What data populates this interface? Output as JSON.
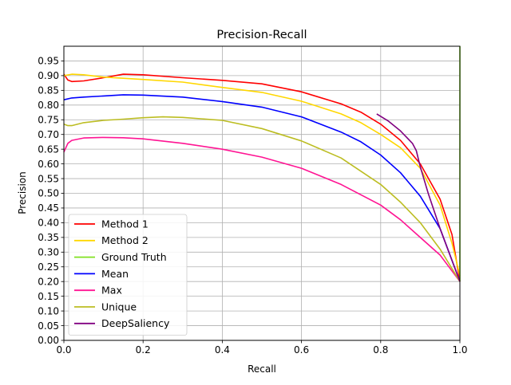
{
  "chart_data": {
    "type": "line",
    "title": "Precision-Recall",
    "xlabel": "Recall",
    "ylabel": "Precision",
    "xlim": [
      0,
      1
    ],
    "ylim": [
      0,
      1
    ],
    "grid": true,
    "legend_placement": "lower-left",
    "x_ticks": [
      "0.0",
      "0.2",
      "0.4",
      "0.6",
      "0.8",
      "1.0"
    ],
    "y_ticks": [
      "0.00",
      "0.05",
      "0.10",
      "0.15",
      "0.20",
      "0.25",
      "0.30",
      "0.35",
      "0.40",
      "0.45",
      "0.50",
      "0.55",
      "0.60",
      "0.65",
      "0.70",
      "0.75",
      "0.80",
      "0.85",
      "0.90",
      "0.95"
    ],
    "series": [
      {
        "name": "Method 1",
        "color": "#ff0000",
        "x": [
          0.0,
          0.01,
          0.02,
          0.05,
          0.1,
          0.15,
          0.2,
          0.3,
          0.4,
          0.5,
          0.6,
          0.7,
          0.75,
          0.8,
          0.85,
          0.9,
          0.95,
          0.98,
          1.0
        ],
        "y": [
          0.905,
          0.885,
          0.88,
          0.882,
          0.893,
          0.905,
          0.903,
          0.893,
          0.884,
          0.872,
          0.845,
          0.804,
          0.776,
          0.735,
          0.68,
          0.6,
          0.48,
          0.36,
          0.2
        ]
      },
      {
        "name": "Method 2",
        "color": "#ffd700",
        "x": [
          0.0,
          0.02,
          0.05,
          0.1,
          0.2,
          0.3,
          0.4,
          0.5,
          0.6,
          0.7,
          0.75,
          0.8,
          0.85,
          0.9,
          0.95,
          0.98,
          1.0
        ],
        "y": [
          0.9,
          0.905,
          0.903,
          0.895,
          0.887,
          0.878,
          0.86,
          0.843,
          0.813,
          0.77,
          0.74,
          0.7,
          0.655,
          0.585,
          0.46,
          0.33,
          0.22
        ]
      },
      {
        "name": "Ground Truth",
        "color": "#80e020",
        "x": [
          1.0,
          1.0
        ],
        "y": [
          0.2,
          1.0
        ]
      },
      {
        "name": "Mean",
        "color": "#0000ff",
        "x": [
          0.0,
          0.02,
          0.05,
          0.1,
          0.15,
          0.2,
          0.3,
          0.4,
          0.5,
          0.6,
          0.7,
          0.75,
          0.8,
          0.85,
          0.9,
          0.95,
          1.0
        ],
        "y": [
          0.818,
          0.824,
          0.827,
          0.831,
          0.835,
          0.834,
          0.827,
          0.812,
          0.793,
          0.76,
          0.708,
          0.675,
          0.63,
          0.57,
          0.49,
          0.38,
          0.2
        ]
      },
      {
        "name": "Max",
        "color": "#ff1493",
        "x": [
          0.0,
          0.01,
          0.02,
          0.05,
          0.1,
          0.15,
          0.2,
          0.3,
          0.4,
          0.5,
          0.6,
          0.7,
          0.8,
          0.85,
          0.9,
          0.95,
          1.0
        ],
        "y": [
          0.64,
          0.67,
          0.68,
          0.688,
          0.69,
          0.689,
          0.685,
          0.67,
          0.65,
          0.623,
          0.585,
          0.53,
          0.46,
          0.41,
          0.35,
          0.29,
          0.2
        ]
      },
      {
        "name": "Unique",
        "color": "#bcbd22",
        "x": [
          0.0,
          0.01,
          0.02,
          0.05,
          0.1,
          0.15,
          0.2,
          0.25,
          0.3,
          0.4,
          0.5,
          0.6,
          0.7,
          0.8,
          0.85,
          0.9,
          0.95,
          1.0
        ],
        "y": [
          0.735,
          0.73,
          0.73,
          0.74,
          0.748,
          0.752,
          0.757,
          0.76,
          0.758,
          0.748,
          0.72,
          0.678,
          0.62,
          0.53,
          0.47,
          0.4,
          0.31,
          0.2
        ]
      },
      {
        "name": "DeepSaliency",
        "color": "#800080",
        "x": [
          0.79,
          0.82,
          0.85,
          0.88,
          0.89,
          0.9,
          0.92,
          0.95,
          1.0
        ],
        "y": [
          0.77,
          0.745,
          0.712,
          0.67,
          0.645,
          0.59,
          0.5,
          0.38,
          0.2
        ]
      }
    ]
  }
}
